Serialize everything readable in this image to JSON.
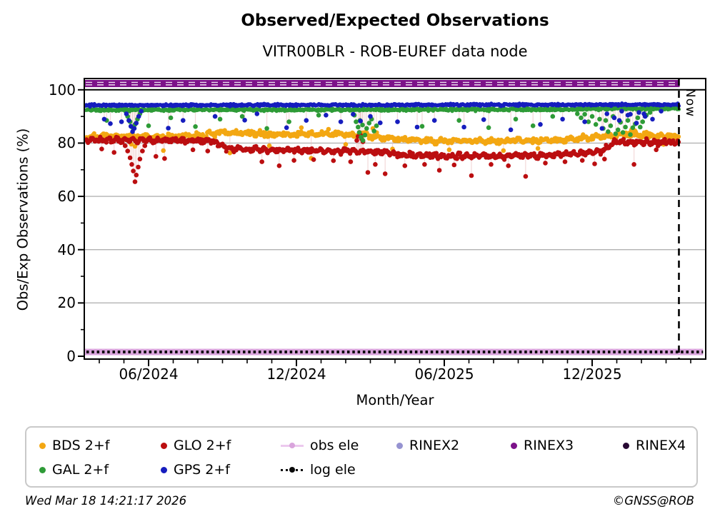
{
  "title": "Observed/Expected Observations",
  "subtitle": "VITR00BLR - ROB-EUREF data node",
  "footer": {
    "left": "Wed Mar 18 14:21:17 2026",
    "right": "©GNSS@ROB"
  },
  "chart_data": {
    "type": "scatter",
    "title": "Observed/Expected Observations",
    "subtitle": "VITR00BLR - ROB-EUREF data node",
    "xlabel": "Month/Year",
    "ylabel": "Obs/Exp Observations (%)",
    "x_axis": {
      "note": "x unit = months since 2024-01 (5 = Jun 2024); data span mid-Mar 2024 to 18 Mar 2026",
      "domain": [
        2.4,
        27.6
      ],
      "ticks": [
        {
          "m": 5,
          "label": "06/2024"
        },
        {
          "m": 11,
          "label": "12/2024"
        },
        {
          "m": 17,
          "label": "06/2025"
        },
        {
          "m": 23,
          "label": "12/2025"
        }
      ],
      "minor_tick_months": [
        3,
        4,
        6,
        7,
        8,
        9,
        10,
        12,
        13,
        14,
        15,
        16,
        18,
        19,
        20,
        21,
        22,
        24,
        25,
        26,
        27
      ]
    },
    "y_axis": {
      "range": [
        -1,
        104.3
      ],
      "ticks": [
        0,
        20,
        40,
        60,
        80,
        100
      ],
      "minor_ticks": [
        10,
        30,
        50,
        70,
        90
      ],
      "grid_values": [
        20,
        40,
        60,
        80
      ],
      "grid_color": "#b3b3b3",
      "hundred_line_color": "#000000"
    },
    "now_line": {
      "label": "Now",
      "month": 26.55
    },
    "series": [
      {
        "name": "BDS 2+f",
        "color": "#F3A712",
        "kind": "scatter",
        "spread": 0.95,
        "wave_amp": 0.35,
        "wave_freq": 12,
        "trend": [
          [
            2.4,
            82.4
          ],
          [
            5.0,
            82.2
          ],
          [
            7.0,
            82.8
          ],
          [
            8.2,
            84.0
          ],
          [
            9.0,
            83.6
          ],
          [
            10.5,
            83.2
          ],
          [
            12.5,
            83.4
          ],
          [
            14.0,
            82.8
          ],
          [
            15.3,
            81.4
          ],
          [
            16.5,
            80.9
          ],
          [
            18.5,
            80.8
          ],
          [
            20.5,
            81.0
          ],
          [
            22.0,
            81.4
          ],
          [
            23.0,
            82.0
          ],
          [
            24.3,
            83.2
          ],
          [
            25.5,
            83.0
          ],
          [
            26.5,
            82.5
          ]
        ],
        "outliers": [
          [
            4.3,
            79.6
          ],
          [
            4.45,
            78.8
          ],
          [
            5.6,
            77.2
          ],
          [
            8.3,
            76.3
          ],
          [
            9.9,
            79.0
          ],
          [
            11.2,
            85.8
          ],
          [
            11.6,
            74.3
          ],
          [
            12.3,
            85.2
          ],
          [
            13.0,
            79.5
          ],
          [
            14.1,
            85.5
          ],
          [
            14.9,
            77.8
          ],
          [
            17.2,
            77.5
          ],
          [
            19.4,
            77.2
          ],
          [
            20.8,
            78.0
          ],
          [
            24.6,
            85.0
          ],
          [
            25.9,
            79.5
          ]
        ]
      },
      {
        "name": "GLO 2+f",
        "color": "#BB0E10",
        "kind": "scatter",
        "spread": 0.8,
        "wave_amp": 0.5,
        "wave_freq": 19,
        "trend": [
          [
            2.4,
            81.2
          ],
          [
            4.0,
            81.2
          ],
          [
            7.6,
            80.8
          ],
          [
            8.2,
            78.2
          ],
          [
            9.0,
            77.6
          ],
          [
            12.0,
            77.2
          ],
          [
            14.5,
            76.6
          ],
          [
            15.3,
            75.6
          ],
          [
            17.0,
            75.2
          ],
          [
            19.0,
            75.2
          ],
          [
            21.0,
            75.4
          ],
          [
            22.5,
            76.2
          ],
          [
            23.4,
            76.9
          ],
          [
            23.9,
            80.4
          ],
          [
            26.5,
            80.3
          ]
        ],
        "outliers": [
          [
            4.05,
            79.0
          ],
          [
            4.15,
            77.0
          ],
          [
            4.25,
            74.5
          ],
          [
            4.32,
            72.0
          ],
          [
            4.38,
            69.5
          ],
          [
            4.45,
            65.5
          ],
          [
            4.5,
            68.0
          ],
          [
            4.58,
            71.0
          ],
          [
            4.65,
            74.0
          ],
          [
            4.75,
            77.0
          ],
          [
            4.85,
            79.0
          ],
          [
            3.1,
            77.8
          ],
          [
            3.6,
            76.5
          ],
          [
            5.3,
            75.0
          ],
          [
            5.65,
            74.2
          ],
          [
            6.8,
            77.5
          ],
          [
            7.4,
            77.0
          ],
          [
            9.6,
            73.0
          ],
          [
            10.3,
            71.5
          ],
          [
            10.9,
            73.5
          ],
          [
            11.7,
            73.8
          ],
          [
            12.5,
            73.4
          ],
          [
            13.2,
            73.0
          ],
          [
            13.45,
            81.0
          ],
          [
            13.5,
            82.5
          ],
          [
            13.55,
            84.0
          ],
          [
            13.6,
            83.0
          ],
          [
            13.65,
            81.5
          ],
          [
            13.7,
            80.5
          ],
          [
            13.9,
            69.0
          ],
          [
            14.2,
            72.0
          ],
          [
            14.6,
            68.5
          ],
          [
            15.4,
            71.5
          ],
          [
            16.2,
            72.0
          ],
          [
            16.8,
            69.8
          ],
          [
            17.4,
            71.8
          ],
          [
            18.1,
            67.8
          ],
          [
            18.9,
            72.0
          ],
          [
            19.6,
            71.5
          ],
          [
            20.3,
            67.5
          ],
          [
            21.1,
            72.5
          ],
          [
            21.9,
            73.0
          ],
          [
            22.6,
            73.5
          ],
          [
            23.1,
            72.2
          ],
          [
            23.5,
            74.0
          ],
          [
            24.7,
            72.0
          ],
          [
            25.6,
            77.5
          ]
        ]
      },
      {
        "name": "GAL 2+f",
        "color": "#2E9B37",
        "kind": "scatter",
        "spread": 0.5,
        "wave_amp": 0,
        "wave_freq": 0,
        "trend": [
          [
            2.4,
            92.5
          ],
          [
            21.0,
            92.6
          ],
          [
            24.0,
            93.0
          ],
          [
            26.5,
            93.0
          ]
        ],
        "outliers": [
          [
            4.15,
            90.0
          ],
          [
            4.25,
            88.0
          ],
          [
            4.35,
            85.8
          ],
          [
            4.45,
            87.0
          ],
          [
            4.55,
            89.0
          ],
          [
            4.65,
            91.0
          ],
          [
            3.3,
            88.5
          ],
          [
            5.0,
            86.5
          ],
          [
            5.9,
            89.5
          ],
          [
            6.9,
            86.2
          ],
          [
            7.9,
            89.0
          ],
          [
            8.8,
            90.0
          ],
          [
            9.8,
            85.5
          ],
          [
            10.7,
            88.0
          ],
          [
            11.9,
            90.5
          ],
          [
            13.35,
            90.5
          ],
          [
            13.42,
            88.0
          ],
          [
            13.5,
            86.0
          ],
          [
            13.55,
            84.0
          ],
          [
            13.58,
            88.5
          ],
          [
            13.62,
            82.2
          ],
          [
            13.68,
            86.8
          ],
          [
            13.7,
            81.0
          ],
          [
            13.78,
            83.0
          ],
          [
            13.85,
            85.5
          ],
          [
            13.95,
            87.5
          ],
          [
            14.05,
            89.0
          ],
          [
            14.15,
            84.5
          ],
          [
            14.25,
            86.5
          ],
          [
            16.1,
            86.3
          ],
          [
            17.6,
            88.5
          ],
          [
            18.8,
            85.8
          ],
          [
            19.9,
            89.0
          ],
          [
            20.6,
            86.5
          ],
          [
            21.4,
            90.0
          ],
          [
            22.4,
            91.0
          ],
          [
            22.55,
            89.5
          ],
          [
            22.7,
            90.8
          ],
          [
            22.85,
            88.0
          ],
          [
            23.0,
            90.0
          ],
          [
            23.15,
            87.0
          ],
          [
            23.3,
            89.0
          ],
          [
            23.45,
            85.5
          ],
          [
            23.55,
            88.5
          ],
          [
            23.65,
            84.3
          ],
          [
            23.75,
            86.5
          ],
          [
            23.85,
            90.0
          ],
          [
            23.95,
            83.5
          ],
          [
            24.05,
            85.0
          ],
          [
            24.15,
            87.8
          ],
          [
            24.25,
            84.0
          ],
          [
            24.35,
            86.0
          ],
          [
            24.45,
            88.5
          ],
          [
            24.55,
            83.2
          ],
          [
            24.65,
            85.8
          ],
          [
            24.75,
            87.2
          ],
          [
            24.85,
            89.5
          ],
          [
            24.95,
            86.0
          ],
          [
            25.05,
            88.0
          ],
          [
            25.2,
            90.5
          ],
          [
            25.35,
            91.5
          ]
        ]
      },
      {
        "name": "GPS 2+f",
        "color": "#161DBE",
        "kind": "scatter",
        "spread": 0.42,
        "wave_amp": 0,
        "wave_freq": 0,
        "trend": [
          [
            2.4,
            94.2
          ],
          [
            26.5,
            94.45
          ]
        ],
        "outliers": [
          [
            4.1,
            91.0
          ],
          [
            4.2,
            88.5
          ],
          [
            4.28,
            86.3
          ],
          [
            4.35,
            84.3
          ],
          [
            4.42,
            85.5
          ],
          [
            4.5,
            87.5
          ],
          [
            4.6,
            90.0
          ],
          [
            4.7,
            92.0
          ],
          [
            3.2,
            89.0
          ],
          [
            3.45,
            87.3
          ],
          [
            3.9,
            88.0
          ],
          [
            5.8,
            85.6
          ],
          [
            6.4,
            88.5
          ],
          [
            7.7,
            90.0
          ],
          [
            8.9,
            88.6
          ],
          [
            9.4,
            91.0
          ],
          [
            10.6,
            85.8
          ],
          [
            11.4,
            88.5
          ],
          [
            12.2,
            90.5
          ],
          [
            12.8,
            88.0
          ],
          [
            13.3,
            90.8
          ],
          [
            13.6,
            88.3
          ],
          [
            14.0,
            90.0
          ],
          [
            14.4,
            87.6
          ],
          [
            15.1,
            88.0
          ],
          [
            15.9,
            86.0
          ],
          [
            16.6,
            88.5
          ],
          [
            17.8,
            86.0
          ],
          [
            18.6,
            88.8
          ],
          [
            19.7,
            85.0
          ],
          [
            20.9,
            87.0
          ],
          [
            21.8,
            89.0
          ],
          [
            22.7,
            88.0
          ],
          [
            23.4,
            85.5
          ],
          [
            23.6,
            91.0
          ],
          [
            23.9,
            89.5
          ],
          [
            24.1,
            88.5
          ],
          [
            24.2,
            92.0
          ],
          [
            24.45,
            90.5
          ],
          [
            24.55,
            90.8
          ],
          [
            24.8,
            87.5
          ],
          [
            24.9,
            91.5
          ],
          [
            25.1,
            91.0
          ],
          [
            25.15,
            90.0
          ],
          [
            25.45,
            89.0
          ],
          [
            25.8,
            92.0
          ]
        ]
      },
      {
        "name": "obs ele",
        "color": "#D9A4DC",
        "kind": "hband",
        "value_range": [
          0.4,
          2.8
        ],
        "x_end_month": 27.5
      },
      {
        "name": "log ele",
        "color": "#0a0a0a",
        "kind": "dotted-hline",
        "value": 1.6,
        "x_end_month": 27.5
      },
      {
        "name": "RINEX2",
        "color": "#9693D1",
        "kind": "legend-only"
      },
      {
        "name": "RINEX3",
        "color": "#7C1289",
        "kind": "hband",
        "value_range": [
          101.0,
          103.7
        ],
        "x_end_month": 26.55,
        "white_dashes": true
      },
      {
        "name": "RINEX4",
        "color": "#270833",
        "kind": "legend-only"
      }
    ],
    "legend": [
      {
        "label": "BDS 2+f",
        "color": "#F3A712",
        "marker": "dot"
      },
      {
        "label": "GLO 2+f",
        "color": "#BB0E10",
        "marker": "dot"
      },
      {
        "label": "obs ele",
        "color": "#D9A4DC",
        "marker": "line-dot"
      },
      {
        "label": "RINEX2",
        "color": "#9693D1",
        "marker": "dot"
      },
      {
        "label": "RINEX3",
        "color": "#7C1289",
        "marker": "dot"
      },
      {
        "label": "RINEX4",
        "color": "#270833",
        "marker": "dot"
      },
      {
        "label": "GAL 2+f",
        "color": "#2E9B37",
        "marker": "dot"
      },
      {
        "label": "GPS 2+f",
        "color": "#161DBE",
        "marker": "dot"
      },
      {
        "label": "log ele",
        "color": "#0a0a0a",
        "marker": "dotted-line-dot"
      }
    ]
  }
}
